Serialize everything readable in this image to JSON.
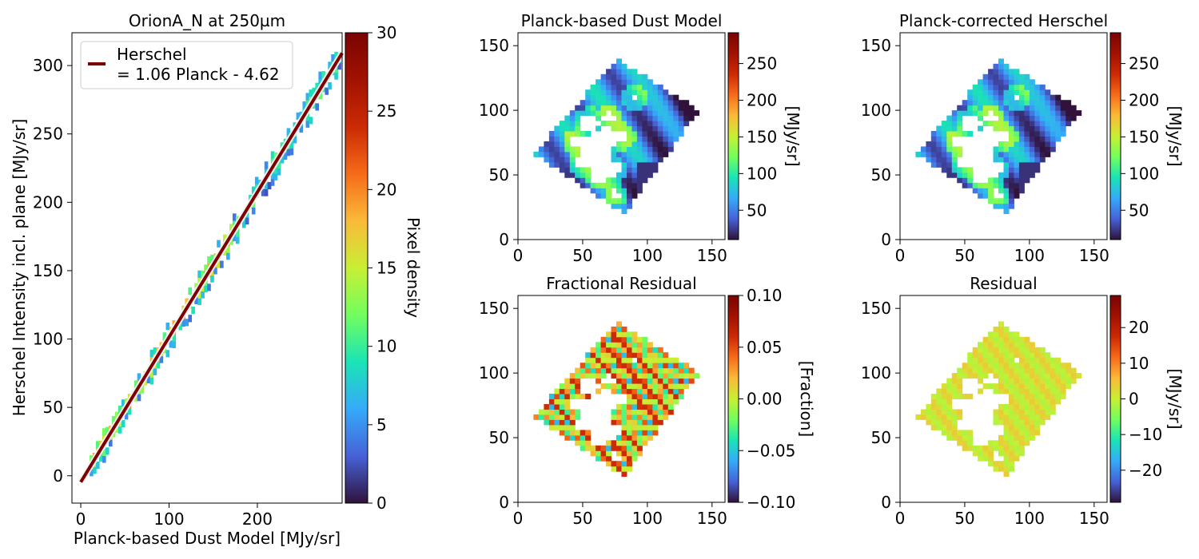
{
  "figure": {
    "scatter_title": "OrionA_N at 250µm",
    "panels": {
      "model": {
        "title": "Planck-based Dust Model",
        "colorbar_label": "[MJy/sr]"
      },
      "corrected": {
        "title": "Planck-corrected Herschel",
        "colorbar_label": "[MJy/sr]"
      },
      "fractional": {
        "title": "Fractional Residual",
        "colorbar_label": "[Fraction]"
      },
      "residual": {
        "title": "Residual",
        "colorbar_label": "[MJy/sr]"
      }
    },
    "colors": {
      "fit_line": "#7f0000",
      "fit_outline": "#f2f2f2",
      "axes": "#000000"
    },
    "colormap": "turbo"
  },
  "chart_data": [
    {
      "type": "heatmap",
      "title": "OrionA_N at 250µm",
      "xlabel": "Planck-based Dust Model [MJy/sr]",
      "ylabel": "Herschel Intensity incl. plane [MJy/sr]",
      "xlim": [
        -10,
        296
      ],
      "ylim": [
        -20,
        324
      ],
      "xticks": [
        0,
        100,
        200
      ],
      "yticks": [
        0,
        50,
        100,
        150,
        200,
        250,
        300
      ],
      "colorbar": {
        "label": "Pixel density",
        "range": [
          0,
          30
        ],
        "ticks": [
          0,
          5,
          10,
          15,
          20,
          25,
          30
        ]
      },
      "fit": {
        "slope": 1.06,
        "intercept": -4.62,
        "x_range": [
          0,
          296
        ]
      },
      "legend": {
        "entry": "Herschel\n= 1.06 Planck - 4.62",
        "position": "top-left"
      }
    },
    {
      "type": "heatmap",
      "title": "Planck-based Dust Model",
      "xlim": [
        0,
        160
      ],
      "ylim": [
        0,
        160
      ],
      "xticks": [
        0,
        50,
        100,
        150
      ],
      "yticks": [
        0,
        50,
        100,
        150
      ],
      "colorbar": {
        "label": "[MJy/sr]",
        "range": [
          10,
          292
        ],
        "ticks": [
          50,
          100,
          150,
          200,
          250
        ]
      }
    },
    {
      "type": "heatmap",
      "title": "Planck-corrected Herschel",
      "xlim": [
        0,
        160
      ],
      "ylim": [
        0,
        160
      ],
      "xticks": [
        0,
        50,
        100,
        150
      ],
      "yticks": [
        0,
        50,
        100,
        150
      ],
      "colorbar": {
        "label": "[MJy/sr]",
        "range": [
          10,
          292
        ],
        "ticks": [
          50,
          100,
          150,
          200,
          250
        ]
      }
    },
    {
      "type": "heatmap",
      "title": "Fractional Residual",
      "xlim": [
        0,
        160
      ],
      "ylim": [
        0,
        160
      ],
      "xticks": [
        0,
        50,
        100,
        150
      ],
      "yticks": [
        0,
        50,
        100,
        150
      ],
      "colorbar": {
        "label": "[Fraction]",
        "range": [
          -0.1,
          0.1
        ],
        "ticks": [
          -0.1,
          -0.05,
          0.0,
          0.05,
          0.1
        ]
      }
    },
    {
      "type": "heatmap",
      "title": "Residual",
      "xlim": [
        0,
        160
      ],
      "ylim": [
        0,
        160
      ],
      "xticks": [
        0,
        50,
        100,
        150
      ],
      "yticks": [
        0,
        50,
        100,
        150
      ],
      "colorbar": {
        "label": "[MJy/sr]",
        "range": [
          -29,
          29
        ],
        "ticks": [
          -20,
          -10,
          0,
          10,
          20
        ]
      }
    }
  ]
}
